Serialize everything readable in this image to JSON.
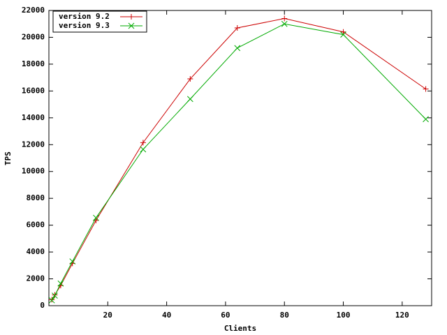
{
  "chart_data": {
    "type": "line",
    "xlabel": "Clients",
    "ylabel": "TPS",
    "x": [
      1,
      2,
      4,
      8,
      16,
      32,
      48,
      64,
      80,
      100,
      128
    ],
    "series": [
      {
        "name": "version 9.2",
        "color": "#cc0000",
        "marker": "plus",
        "values": [
          450,
          800,
          1500,
          3150,
          6350,
          12150,
          16900,
          20700,
          21400,
          20400,
          16150
        ]
      },
      {
        "name": "version 9.3",
        "color": "#00aa00",
        "marker": "cross",
        "values": [
          400,
          750,
          1650,
          3300,
          6550,
          11650,
          15400,
          19200,
          21000,
          20200,
          13900
        ]
      }
    ],
    "xlim": [
      0,
      130
    ],
    "xticks": [
      20,
      40,
      60,
      80,
      100,
      120
    ],
    "ylim": [
      0,
      22000
    ],
    "yticks": [
      0,
      2000,
      4000,
      6000,
      8000,
      10000,
      12000,
      14000,
      16000,
      18000,
      20000,
      22000
    ],
    "legend": "upper left"
  }
}
